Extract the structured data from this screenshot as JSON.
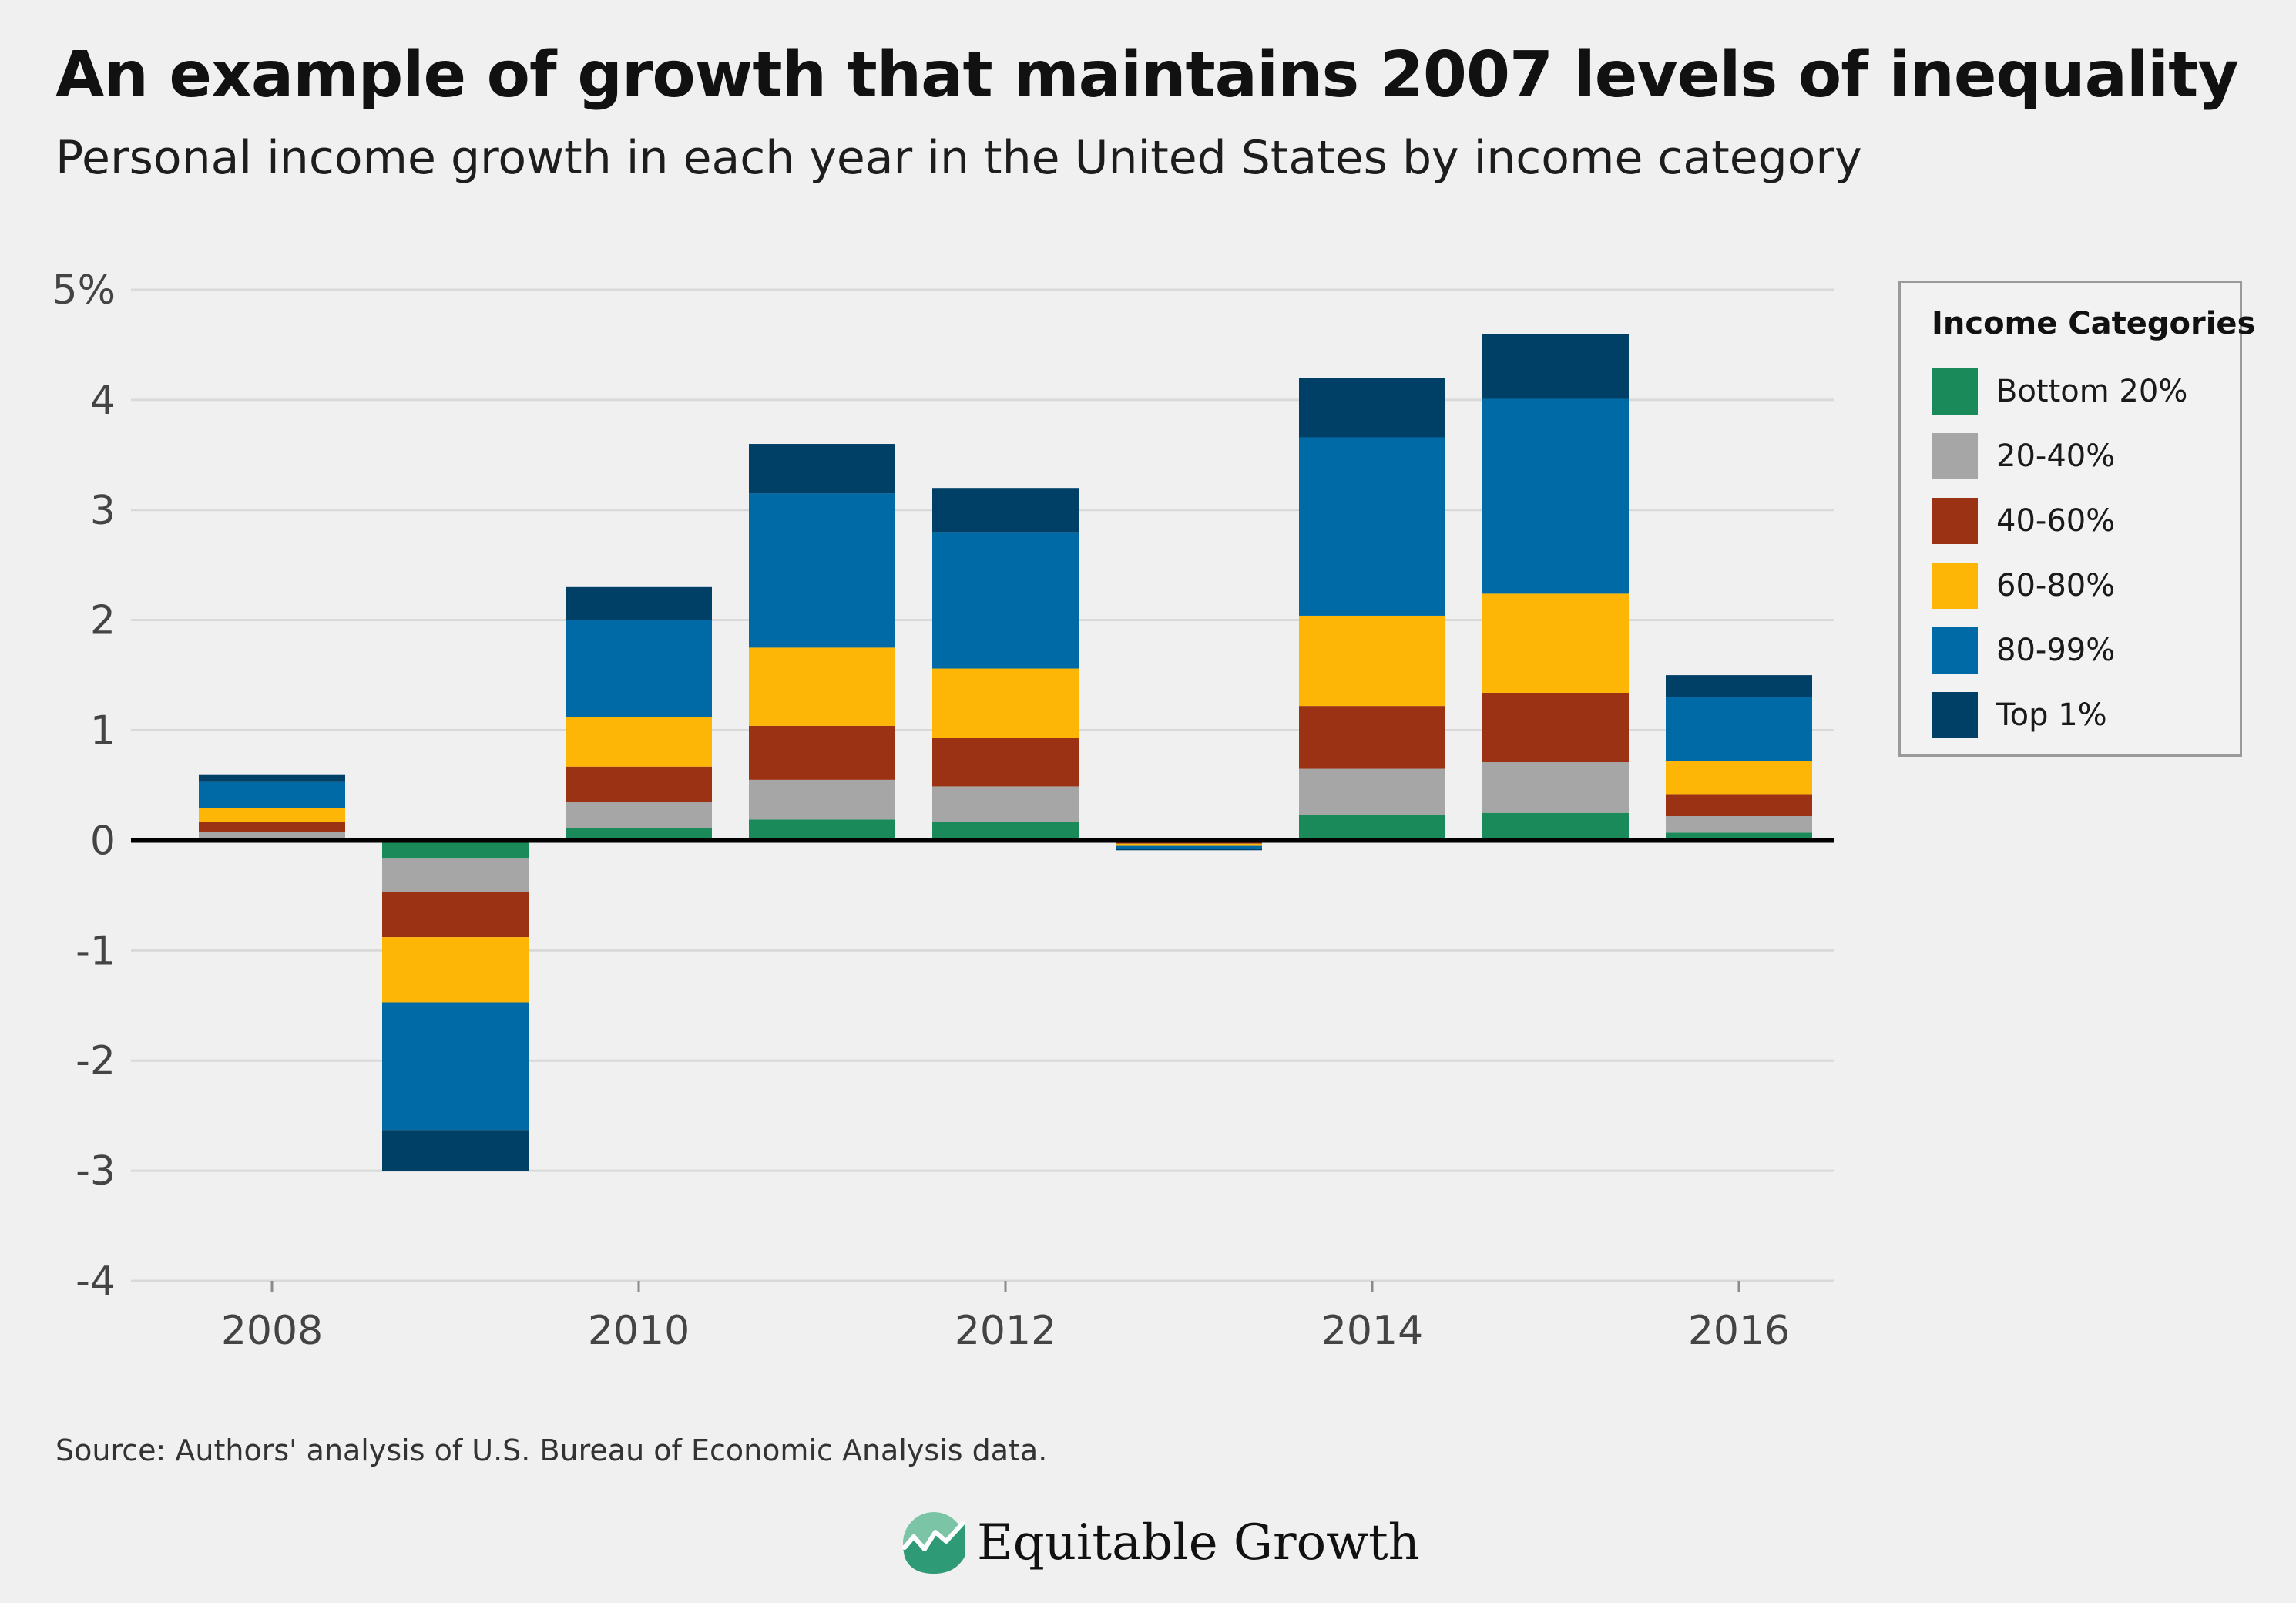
{
  "header": {
    "title": "An example of growth that maintains 2007 levels of inequality",
    "subtitle": "Personal income growth in each year in the United States by income category"
  },
  "legend": {
    "title": "Income Categories",
    "items": [
      {
        "label": "Bottom 20%",
        "color": "#1b8a5a"
      },
      {
        "label": "20-40%",
        "color": "#a6a6a6"
      },
      {
        "label": "40-60%",
        "color": "#9c3214"
      },
      {
        "label": "60-80%",
        "color": "#fdb606"
      },
      {
        "label": "80-99%",
        "color": "#006aa7"
      },
      {
        "label": "Top 1%",
        "color": "#003f66"
      }
    ]
  },
  "footer": {
    "source": "Source: Authors' analysis of U.S. Bureau of Economic Analysis data.",
    "brand": "Equitable Growth",
    "brand_icon": "rising-line-icon"
  },
  "colors": {
    "background": "#f0f0f0",
    "gridline": "#d9d9d9",
    "zero_line": "#000000",
    "axis_text": "#444444"
  },
  "chart_data": {
    "type": "bar",
    "stacked": true,
    "title": "An example of growth that maintains 2007 levels of inequality",
    "subtitle": "Personal income growth in each year in the United States by income category",
    "xlabel": "",
    "ylabel": "",
    "ylim": [
      -4,
      5
    ],
    "yticks": [
      -4,
      -3,
      -2,
      -1,
      0,
      1,
      2,
      3,
      4,
      5
    ],
    "ytick_labels": [
      "-4",
      "-3",
      "-2",
      "-1",
      "0",
      "1",
      "2",
      "3",
      "4",
      "5%"
    ],
    "categories": [
      "2008",
      "2009",
      "2010",
      "2011",
      "2012",
      "2013",
      "2014",
      "2015",
      "2016"
    ],
    "xtick_labels": [
      "2008",
      "",
      "2010",
      "",
      "2012",
      "",
      "2014",
      "",
      "2016"
    ],
    "grid": true,
    "legend_position": "right",
    "series": [
      {
        "name": "Bottom 20%",
        "values": [
          0.02,
          -0.16,
          0.11,
          0.19,
          0.17,
          -0.01,
          0.23,
          0.25,
          0.07
        ]
      },
      {
        "name": "20-40%",
        "values": [
          0.06,
          -0.31,
          0.24,
          0.36,
          0.32,
          -0.01,
          0.42,
          0.46,
          0.15
        ]
      },
      {
        "name": "40-60%",
        "values": [
          0.09,
          -0.41,
          0.32,
          0.49,
          0.44,
          -0.01,
          0.57,
          0.63,
          0.2
        ]
      },
      {
        "name": "60-80%",
        "values": [
          0.12,
          -0.59,
          0.45,
          0.71,
          0.63,
          -0.02,
          0.82,
          0.9,
          0.3
        ]
      },
      {
        "name": "80-99%",
        "values": [
          0.24,
          -1.16,
          0.88,
          1.4,
          1.24,
          -0.03,
          1.62,
          1.77,
          0.58
        ]
      },
      {
        "name": "Top 1%",
        "values": [
          0.07,
          -0.37,
          0.3,
          0.45,
          0.4,
          -0.01,
          0.54,
          0.59,
          0.2
        ]
      }
    ]
  }
}
